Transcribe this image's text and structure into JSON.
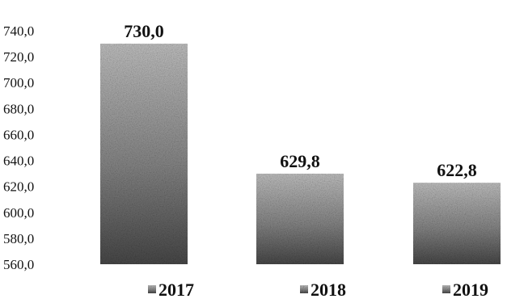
{
  "chart_data": {
    "type": "bar",
    "categories": [
      "2017",
      "2018",
      "2019"
    ],
    "series": [
      {
        "values": [
          730.0,
          629.8,
          622.8
        ]
      }
    ],
    "data_labels": [
      "730,0",
      "629,8",
      "622,8"
    ],
    "legend_labels": [
      "2017",
      "2018",
      "2019"
    ],
    "legend_position": "bottom",
    "ylim": [
      560,
      740
    ],
    "yticks": [
      560,
      580,
      600,
      620,
      640,
      660,
      680,
      700,
      720,
      740
    ],
    "ytick_labels": [
      "560,0",
      "580,0",
      "600,0",
      "620,0",
      "640,0",
      "660,0",
      "680,0",
      "700,0",
      "720,0",
      "740,0"
    ],
    "grid": false,
    "colors": {
      "bar_light": "#c4c4c4",
      "bar_dark": "#505050",
      "text": "#111111"
    }
  }
}
